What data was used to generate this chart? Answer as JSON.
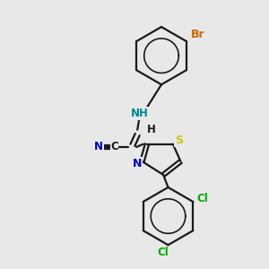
{
  "bg_color": "#e8e8e8",
  "bond_color": "#1a1a1a",
  "atom_colors": {
    "Br": "#cc6600",
    "N": "#0000cc",
    "S": "#cccc00",
    "Cl": "#00aa00",
    "NH": "#008888",
    "C": "#1a1a1a",
    "H": "#1a1a1a"
  },
  "lw": 1.6,
  "fs": 8.5
}
